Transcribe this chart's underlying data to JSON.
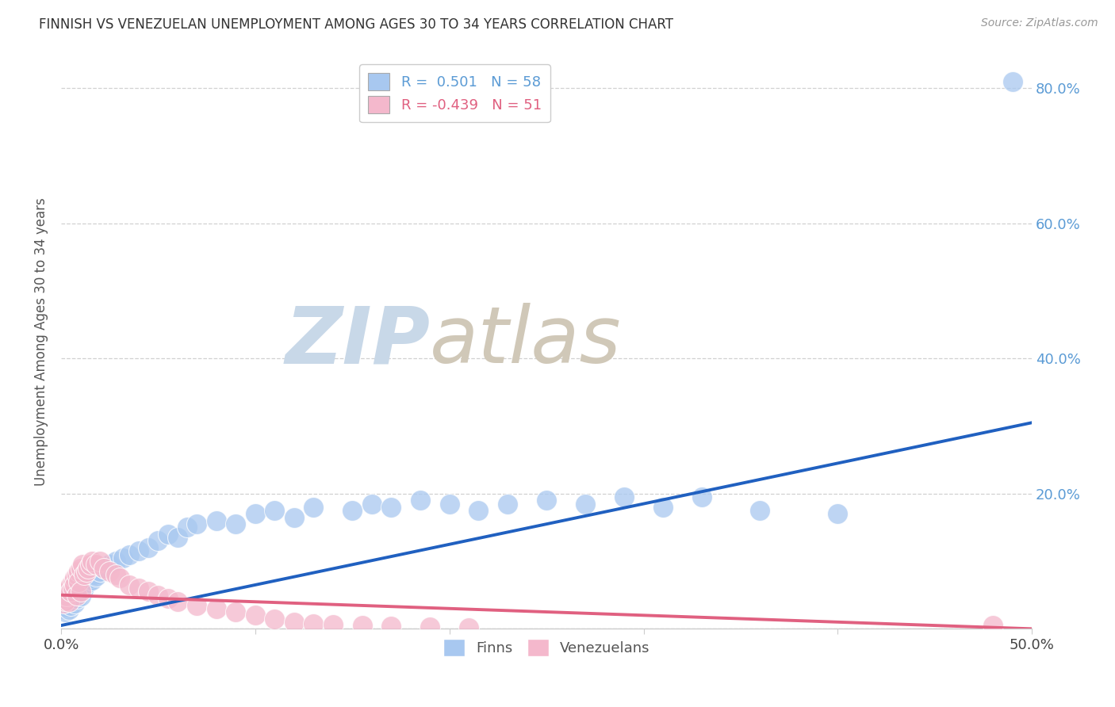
{
  "title": "FINNISH VS VENEZUELAN UNEMPLOYMENT AMONG AGES 30 TO 34 YEARS CORRELATION CHART",
  "source": "Source: ZipAtlas.com",
  "ylabel": "Unemployment Among Ages 30 to 34 years",
  "xlim": [
    0.0,
    0.5
  ],
  "ylim": [
    0.0,
    0.85
  ],
  "yticks": [
    0.0,
    0.2,
    0.4,
    0.6,
    0.8
  ],
  "finn_R": 0.501,
  "finn_N": 58,
  "ven_R": -0.439,
  "ven_N": 51,
  "finn_color": "#a8c8f0",
  "ven_color": "#f4b8cc",
  "finn_line_color": "#2060c0",
  "ven_line_color": "#e06080",
  "background_color": "#ffffff",
  "watermark_zip_color": "#c8d8e8",
  "watermark_atlas_color": "#d0c8b8",
  "finn_x": [
    0.001,
    0.002,
    0.003,
    0.003,
    0.004,
    0.004,
    0.005,
    0.005,
    0.006,
    0.007,
    0.007,
    0.008,
    0.008,
    0.009,
    0.01,
    0.01,
    0.011,
    0.012,
    0.013,
    0.014,
    0.015,
    0.016,
    0.017,
    0.018,
    0.02,
    0.022,
    0.025,
    0.028,
    0.032,
    0.035,
    0.04,
    0.045,
    0.05,
    0.055,
    0.06,
    0.065,
    0.07,
    0.08,
    0.09,
    0.1,
    0.11,
    0.12,
    0.13,
    0.15,
    0.16,
    0.17,
    0.185,
    0.2,
    0.215,
    0.23,
    0.25,
    0.27,
    0.29,
    0.31,
    0.33,
    0.36,
    0.4,
    0.49
  ],
  "finn_y": [
    0.03,
    0.025,
    0.038,
    0.032,
    0.04,
    0.028,
    0.045,
    0.035,
    0.042,
    0.05,
    0.038,
    0.055,
    0.045,
    0.06,
    0.055,
    0.048,
    0.065,
    0.06,
    0.07,
    0.068,
    0.075,
    0.072,
    0.08,
    0.078,
    0.085,
    0.09,
    0.095,
    0.1,
    0.105,
    0.11,
    0.115,
    0.12,
    0.13,
    0.14,
    0.135,
    0.15,
    0.155,
    0.16,
    0.155,
    0.17,
    0.175,
    0.165,
    0.18,
    0.175,
    0.185,
    0.18,
    0.19,
    0.185,
    0.175,
    0.185,
    0.19,
    0.185,
    0.195,
    0.18,
    0.195,
    0.175,
    0.17,
    0.81
  ],
  "ven_x": [
    0.001,
    0.001,
    0.002,
    0.002,
    0.003,
    0.003,
    0.004,
    0.004,
    0.005,
    0.005,
    0.006,
    0.006,
    0.007,
    0.007,
    0.008,
    0.008,
    0.009,
    0.009,
    0.01,
    0.01,
    0.011,
    0.012,
    0.013,
    0.014,
    0.015,
    0.016,
    0.018,
    0.02,
    0.022,
    0.025,
    0.028,
    0.03,
    0.035,
    0.04,
    0.045,
    0.05,
    0.055,
    0.06,
    0.07,
    0.08,
    0.09,
    0.1,
    0.11,
    0.12,
    0.13,
    0.14,
    0.155,
    0.17,
    0.19,
    0.21,
    0.48
  ],
  "ven_y": [
    0.038,
    0.045,
    0.042,
    0.05,
    0.055,
    0.048,
    0.06,
    0.04,
    0.065,
    0.055,
    0.07,
    0.06,
    0.075,
    0.065,
    0.08,
    0.05,
    0.085,
    0.07,
    0.09,
    0.055,
    0.095,
    0.08,
    0.085,
    0.09,
    0.095,
    0.1,
    0.095,
    0.1,
    0.09,
    0.085,
    0.08,
    0.075,
    0.065,
    0.06,
    0.055,
    0.05,
    0.045,
    0.04,
    0.035,
    0.03,
    0.025,
    0.02,
    0.015,
    0.01,
    0.008,
    0.006,
    0.005,
    0.004,
    0.003,
    0.002,
    0.005
  ],
  "finn_slope": 0.6,
  "finn_intercept": 0.005,
  "ven_slope": -0.1,
  "ven_intercept": 0.05
}
